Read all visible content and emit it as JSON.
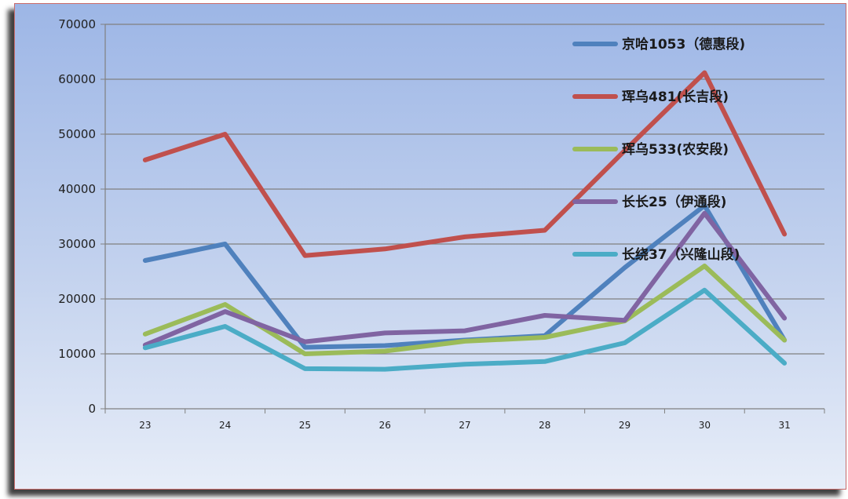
{
  "chart_data": {
    "type": "line",
    "title": "",
    "xlabel": "",
    "ylabel": "",
    "x": [
      "23",
      "24",
      "25",
      "26",
      "27",
      "28",
      "29",
      "30",
      "31"
    ],
    "ylim": [
      0,
      70000
    ],
    "yticks": [
      "0",
      "10000",
      "20000",
      "30000",
      "40000",
      "50000",
      "60000",
      "70000"
    ],
    "grid": true,
    "legend_position": "right",
    "series": [
      {
        "name": "京哈1053（德惠段)",
        "color": "#4f81bd",
        "values": [
          27000,
          30000,
          11200,
          11500,
          12500,
          13300,
          25700,
          37000,
          12500
        ]
      },
      {
        "name": "珲乌481(长吉段)",
        "color": "#c0504d",
        "values": [
          45300,
          50000,
          27900,
          29100,
          31300,
          32500,
          47000,
          61200,
          31800
        ]
      },
      {
        "name": "珲乌533(农安段)",
        "color": "#9bbb59",
        "values": [
          13600,
          19000,
          10000,
          10500,
          12300,
          13000,
          16000,
          26000,
          12500
        ]
      },
      {
        "name": "长长25（伊通段)",
        "color": "#8064a2",
        "values": [
          11600,
          17700,
          12200,
          13800,
          14200,
          17000,
          16100,
          35600,
          16500
        ]
      },
      {
        "name": "长绕37（兴隆山段)",
        "color": "#4bacc6",
        "values": [
          11100,
          15000,
          7300,
          7200,
          8100,
          8600,
          12000,
          21600,
          8300
        ]
      }
    ]
  }
}
